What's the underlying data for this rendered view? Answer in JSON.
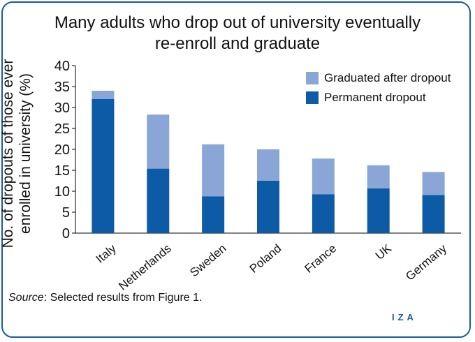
{
  "chart_data": {
    "type": "bar",
    "stacked": true,
    "title_lines": [
      "Many adults who drop out of university eventually",
      "re-enroll and graduate"
    ],
    "ylabel_lines": [
      "No. of dropouts of those ever",
      "enrolled in university (%)"
    ],
    "xlabel": "",
    "categories": [
      "Italy",
      "Netherlands",
      "Sweden",
      "Poland",
      "France",
      "UK",
      "Germany"
    ],
    "series": [
      {
        "name": "Permanent dropout",
        "color": "#0d5aa7",
        "values": [
          32,
          15.4,
          8.8,
          12.5,
          9.3,
          10.7,
          9.1
        ]
      },
      {
        "name": "Graduated after dropout",
        "color": "#8aa6d6",
        "values": [
          2,
          12.9,
          12.4,
          7.5,
          8.5,
          5.5,
          5.5
        ]
      }
    ],
    "legend_order": [
      "Graduated after dropout",
      "Permanent dropout"
    ],
    "legend_position": "top-right",
    "ylim": [
      0,
      40
    ],
    "yticks": [
      0,
      5,
      10,
      15,
      20,
      25,
      30,
      35,
      40
    ],
    "grid": false
  },
  "source": {
    "label": "Source",
    "text": ": Selected results from Figure 1."
  },
  "logo": {
    "text": "IZA"
  }
}
